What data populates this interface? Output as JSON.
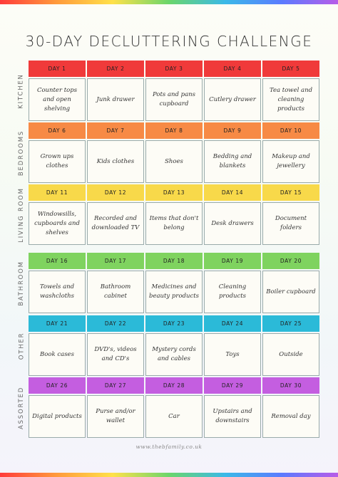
{
  "title": "30-DAY DECLUTTERING CHALLENGE",
  "footer": "www.thebfamily.co.uk",
  "sections": [
    {
      "label": "KITCHEN",
      "color": "#f03a3a",
      "days": [
        "DAY 1",
        "DAY 2",
        "DAY 3",
        "DAY 4",
        "DAY 5"
      ],
      "tasks": [
        "Counter tops and open shelving",
        "Junk drawer",
        "Pots and pans cupboard",
        "Cutlery drawer",
        "Tea towel and cleaning products"
      ]
    },
    {
      "label": "BEDROOMS",
      "color": "#f78a45",
      "days": [
        "DAY 6",
        "DAY 7",
        "DAY 8",
        "DAY 9",
        "DAY 10"
      ],
      "tasks": [
        "Grown ups clothes",
        "Kids clothes",
        "Shoes",
        "Bedding and blankets",
        "Makeup and jewellery"
      ]
    },
    {
      "label": "LIVING ROOM",
      "color": "#f8d94a",
      "days": [
        "DAY 11",
        "DAY 12",
        "DAY 13",
        "DAY 14",
        "DAY 15"
      ],
      "tasks": [
        "Windowsills, cupboards and shelves",
        "Recorded and downloaded TV",
        "Items that don't belong",
        "Desk drawers",
        "Document folders"
      ]
    },
    {
      "label": "BATHROOM",
      "color": "#7fd35f",
      "days": [
        "DAY 16",
        "DAY 17",
        "DAY 18",
        "DAY 19",
        "DAY 20"
      ],
      "tasks": [
        "Towels and washcloths",
        "Bathroom cabinet",
        "Medicines and beauty products",
        "Cleaning products",
        "Boiler cupboard"
      ]
    },
    {
      "label": "OTHER",
      "color": "#2bbad8",
      "days": [
        "DAY 21",
        "DAY 22",
        "DAY 23",
        "DAY 24",
        "DAY 25"
      ],
      "tasks": [
        "Book cases",
        "DVD's, videos and CD's",
        "Mystery cords and cables",
        "Toys",
        "Outside"
      ]
    },
    {
      "label": "ASSORTED",
      "color": "#c45ee0",
      "days": [
        "DAY 26",
        "DAY 27",
        "DAY 28",
        "DAY 29",
        "DAY 30"
      ],
      "tasks": [
        "Digital products",
        "Purse and/or wallet",
        "Car",
        "Upstairs and downstairs",
        "Removal day"
      ]
    }
  ]
}
